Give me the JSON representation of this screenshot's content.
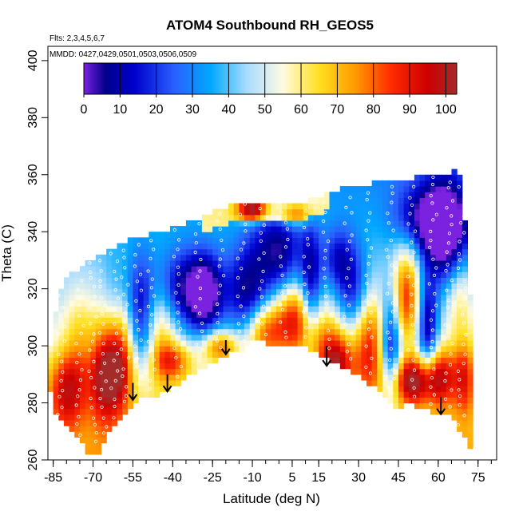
{
  "chart_data": {
    "type": "heatmap",
    "title": "ATOM4 Southbound RH_GEOS5",
    "subtitle_flights": "Flts: 2,3,4,5,6,7",
    "subtitle_dates": "MMDD: 0427,0429,0501,0503,0506,0509",
    "xlabel": "Latitude (deg N)",
    "ylabel": "Theta (C)",
    "xlim": [
      -87,
      82
    ],
    "ylim": [
      260,
      405
    ],
    "x_ticks": [
      -85,
      -70,
      -55,
      -40,
      -25,
      -10,
      5,
      15,
      30,
      45,
      60,
      75
    ],
    "x_tick_labels": [
      "-85",
      "-70",
      "-55",
      "-40",
      "-25",
      "-10",
      "5",
      "15",
      "30",
      "45",
      "60",
      "75"
    ],
    "x_minor_step": 5,
    "y_ticks": [
      260,
      280,
      300,
      320,
      340,
      360,
      380,
      400
    ],
    "y_tick_labels": [
      "260",
      "280",
      "300",
      "320",
      "340",
      "360",
      "380",
      "400"
    ],
    "colorbar": {
      "min": 0,
      "max": 103,
      "ticks": [
        0,
        10,
        20,
        30,
        40,
        50,
        60,
        70,
        80,
        90,
        100
      ],
      "tick_labels": [
        "0",
        "10",
        "20",
        "30",
        "40",
        "50",
        "60",
        "70",
        "80",
        "90",
        "100"
      ],
      "colors": [
        "#7a22e0",
        "#00008b",
        "#0000cd",
        "#2a60ff",
        "#00a8ff",
        "#a8dcff",
        "#fffbe0",
        "#ffe020",
        "#ff9a00",
        "#ff2a00",
        "#cc0000",
        "#a52a2a"
      ],
      "stops": [
        0,
        6,
        14,
        25,
        35,
        45,
        55,
        65,
        75,
        85,
        95,
        103
      ]
    },
    "bottom_boundary": [
      [
        -72,
        263
      ],
      [
        -68,
        263
      ],
      [
        -63,
        271
      ],
      [
        -58,
        277
      ],
      [
        -55,
        280
      ],
      [
        -50,
        282
      ],
      [
        -45,
        283
      ],
      [
        -38,
        287
      ],
      [
        -30,
        292
      ],
      [
        -22,
        296
      ],
      [
        -15,
        298
      ],
      [
        -9,
        302
      ],
      [
        0,
        300
      ],
      [
        5,
        299
      ],
      [
        10,
        300
      ],
      [
        16,
        297
      ],
      [
        22,
        294
      ],
      [
        28,
        291
      ],
      [
        34,
        287
      ],
      [
        40,
        282
      ],
      [
        44,
        278
      ],
      [
        48,
        280
      ],
      [
        55,
        278
      ],
      [
        60,
        276
      ],
      [
        65,
        275
      ],
      [
        70,
        268
      ],
      [
        72,
        265
      ]
    ],
    "top_boundary": [
      [
        -83,
        318
      ],
      [
        -80,
        324
      ],
      [
        -76,
        326
      ],
      [
        -72,
        330
      ],
      [
        -66,
        332
      ],
      [
        -60,
        336
      ],
      [
        -52,
        338
      ],
      [
        -45,
        340
      ],
      [
        -38,
        342
      ],
      [
        -30,
        344
      ],
      [
        -22,
        348
      ],
      [
        -14,
        350
      ],
      [
        -8,
        350
      ],
      [
        0,
        350
      ],
      [
        8,
        350
      ],
      [
        14,
        352
      ],
      [
        20,
        354
      ],
      [
        28,
        356
      ],
      [
        36,
        357
      ],
      [
        44,
        358
      ],
      [
        52,
        359
      ],
      [
        58,
        360
      ],
      [
        64,
        360
      ],
      [
        67,
        362
      ],
      [
        69,
        358
      ],
      [
        72,
        318
      ]
    ],
    "left_boundary": [
      [
        -83,
        318
      ],
      [
        -86,
        300
      ],
      [
        -87,
        290
      ],
      [
        -85,
        278
      ],
      [
        -80,
        272
      ],
      [
        -76,
        268
      ],
      [
        -72,
        263
      ]
    ],
    "fields": [
      {
        "x": -80,
        "y": 285,
        "sx": 5,
        "sy": 10,
        "amp": 35
      },
      {
        "x": -75,
        "y": 300,
        "sx": 4,
        "sy": 14,
        "amp": 15
      },
      {
        "x": -66,
        "y": 290,
        "sx": 4,
        "sy": 12,
        "amp": 40
      },
      {
        "x": -62,
        "y": 310,
        "sx": 3,
        "sy": 15,
        "amp": -10
      },
      {
        "x": -60,
        "y": 295,
        "sx": 4,
        "sy": 12,
        "amp": 45
      },
      {
        "x": -52,
        "y": 312,
        "sx": 4,
        "sy": 14,
        "amp": -35
      },
      {
        "x": -45,
        "y": 305,
        "sx": 4,
        "sy": 12,
        "amp": 20
      },
      {
        "x": -40,
        "y": 295,
        "sx": 5,
        "sy": 5,
        "amp": 30
      },
      {
        "x": -38,
        "y": 320,
        "sx": 6,
        "sy": 10,
        "amp": -30
      },
      {
        "x": -28,
        "y": 318,
        "sx": 5,
        "sy": 10,
        "amp": -55
      },
      {
        "x": -22,
        "y": 300,
        "sx": 5,
        "sy": 4,
        "amp": 35
      },
      {
        "x": -12,
        "y": 318,
        "sx": 6,
        "sy": 12,
        "amp": -40
      },
      {
        "x": -6,
        "y": 305,
        "sx": 5,
        "sy": 7,
        "amp": 35
      },
      {
        "x": -5,
        "y": 335,
        "sx": 5,
        "sy": 10,
        "amp": -15
      },
      {
        "x": 2,
        "y": 330,
        "sx": 5,
        "sy": 12,
        "amp": -30
      },
      {
        "x": 6,
        "y": 310,
        "sx": 6,
        "sy": 10,
        "amp": 45
      },
      {
        "x": 12,
        "y": 320,
        "sx": 3,
        "sy": 15,
        "amp": -40
      },
      {
        "x": 15,
        "y": 300,
        "sx": 4,
        "sy": 8,
        "amp": 20
      },
      {
        "x": 22,
        "y": 295,
        "sx": 4,
        "sy": 8,
        "amp": 45
      },
      {
        "x": 22,
        "y": 330,
        "sx": 4,
        "sy": 8,
        "amp": -25
      },
      {
        "x": 28,
        "y": 318,
        "sx": 4,
        "sy": 12,
        "amp": -30
      },
      {
        "x": 34,
        "y": 300,
        "sx": 5,
        "sy": 12,
        "amp": 40
      },
      {
        "x": 42,
        "y": 300,
        "sx": 3,
        "sy": 14,
        "amp": -45
      },
      {
        "x": 48,
        "y": 318,
        "sx": 4,
        "sy": 12,
        "amp": 40
      },
      {
        "x": 50,
        "y": 288,
        "sx": 6,
        "sy": 6,
        "amp": 45
      },
      {
        "x": 56,
        "y": 305,
        "sx": 3,
        "sy": 14,
        "amp": -45
      },
      {
        "x": 60,
        "y": 290,
        "sx": 5,
        "sy": 8,
        "amp": 40
      },
      {
        "x": 63,
        "y": 340,
        "sx": 6,
        "sy": 12,
        "amp": -50
      },
      {
        "x": 55,
        "y": 345,
        "sx": 8,
        "sy": 8,
        "amp": -30
      },
      {
        "x": 68,
        "y": 320,
        "sx": 3,
        "sy": 10,
        "amp": 15
      },
      {
        "x": 70,
        "y": 290,
        "sx": 3,
        "sy": 10,
        "amp": 30
      },
      {
        "x": -10,
        "y": 348,
        "sx": 4,
        "sy": 3,
        "amp": 50
      },
      {
        "x": 6,
        "y": 346,
        "sx": 5,
        "sy": 3,
        "amp": 25
      }
    ],
    "arrows": [
      {
        "x": -55,
        "y_top": 287,
        "y_tip": 281
      },
      {
        "x": -42,
        "y_top": 290,
        "y_tip": 284
      },
      {
        "x": -20,
        "y_top": 302,
        "y_tip": 297
      },
      {
        "x": 18,
        "y_top": 300,
        "y_tip": 293
      },
      {
        "x": 61,
        "y_top": 282,
        "y_tip": 276
      }
    ],
    "grid": false,
    "legend": "colorbar at top inside plot"
  }
}
